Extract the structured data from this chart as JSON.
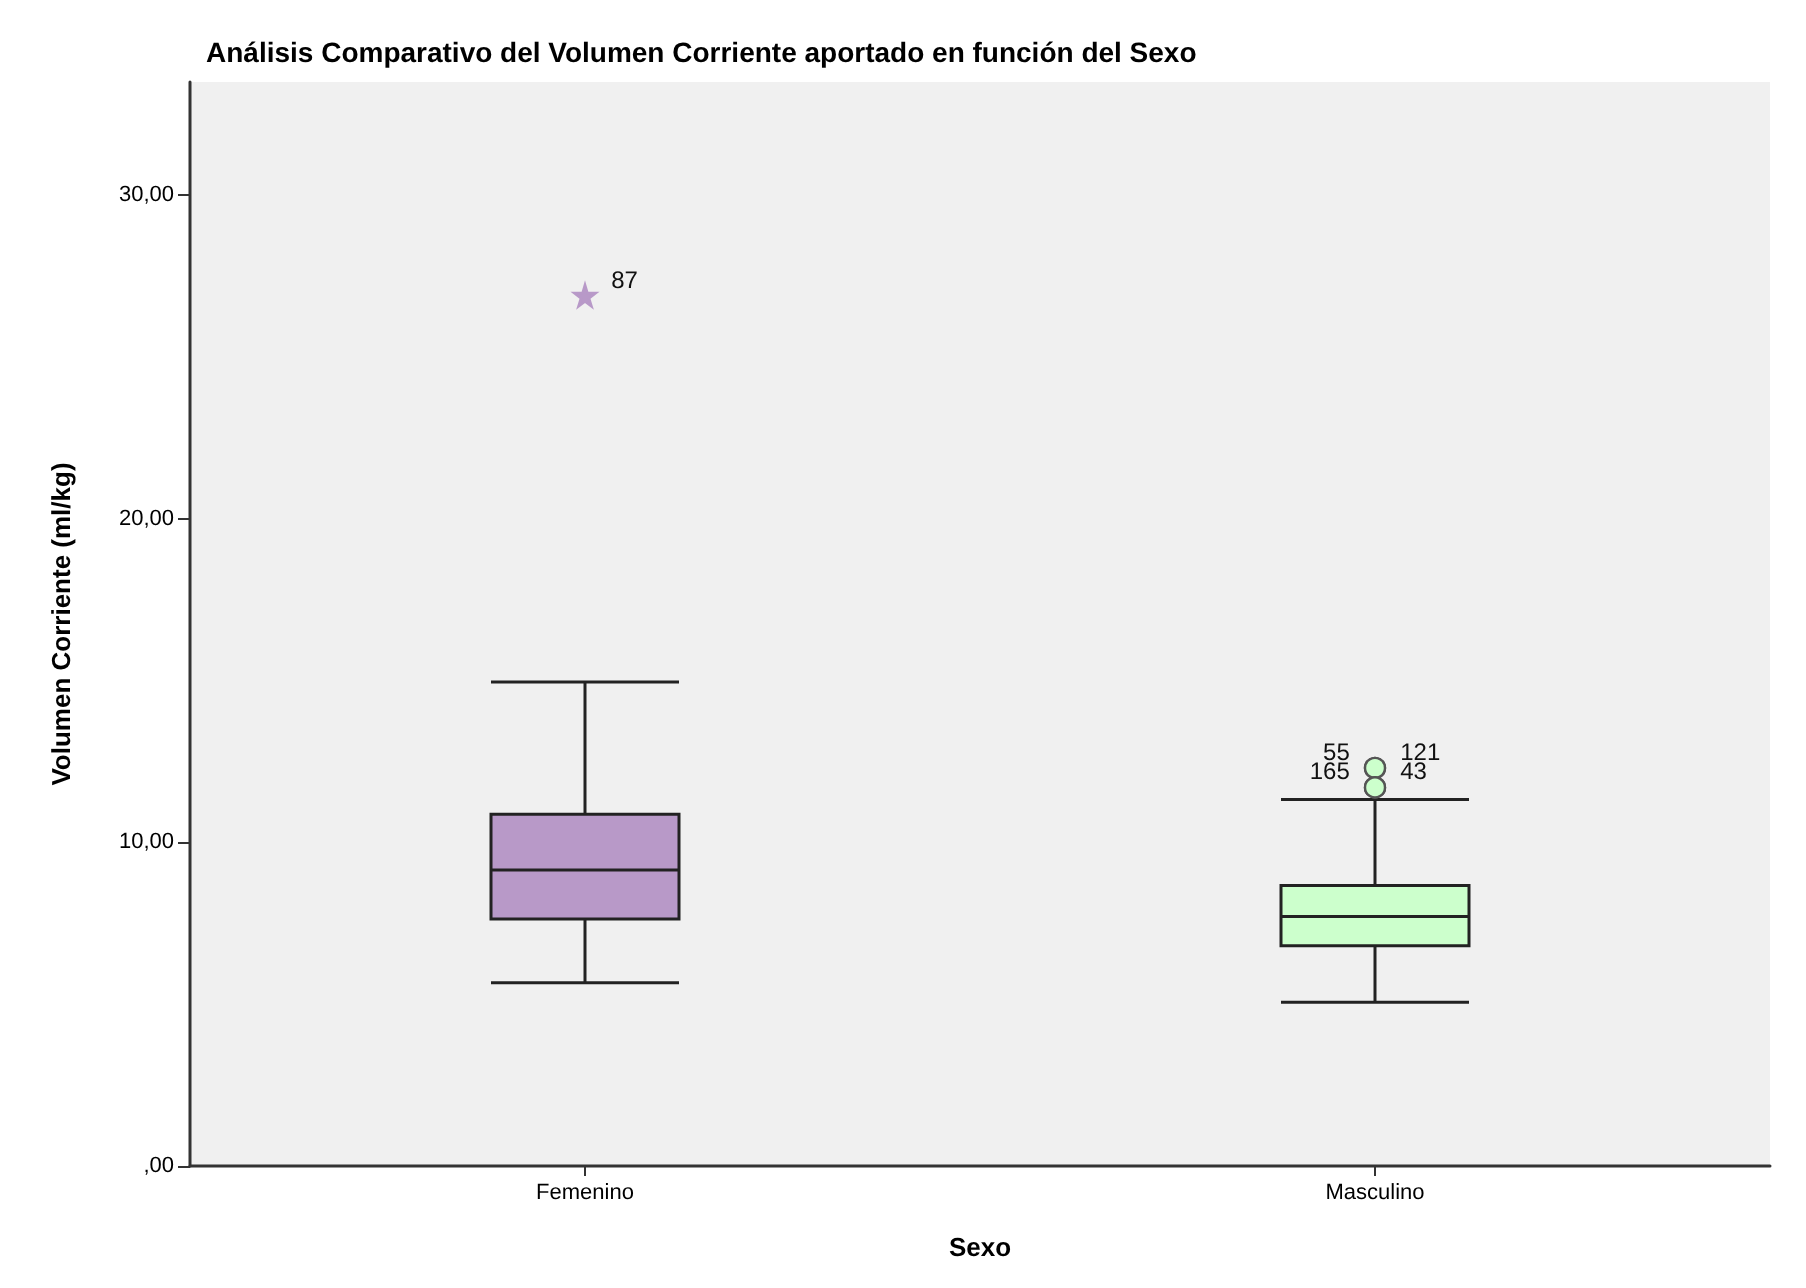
{
  "chart_data": {
    "type": "box",
    "title": "Análisis Comparativo del Volumen Corriente aportado en función del Sexo",
    "xlabel": "Sexo",
    "ylabel": "Volumen Corriente (ml/kg)",
    "categories": [
      "Femenino",
      "Masculino"
    ],
    "series": [
      {
        "color": "#b899c8",
        "marker": "star",
        "boxes": [
          {
            "low": 5.66,
            "q1": 7.63,
            "median": 9.15,
            "q3": 10.87,
            "high": 14.96,
            "outliers": [
              26.9
            ]
          },
          null
        ]
      },
      {
        "color": "#ccffcc",
        "marker": "circle",
        "boxes": [
          null,
          {
            "low": 5.06,
            "q1": 6.81,
            "median": 7.71,
            "q3": 8.67,
            "high": 11.33,
            "outliers": [
              12.3,
              12.3,
              11.7,
              11.7
            ]
          }
        ]
      }
    ],
    "ylim": [
      0,
      33.5
    ],
    "yticks": [
      {
        "value": 0,
        "label": ",00"
      },
      {
        "value": 10,
        "label": "10,00"
      },
      {
        "value": 20,
        "label": "20,00"
      },
      {
        "value": 30,
        "label": "30,00"
      }
    ],
    "grid": false,
    "annotations": [
      "87",
      "55",
      "121",
      "165",
      "43"
    ]
  }
}
